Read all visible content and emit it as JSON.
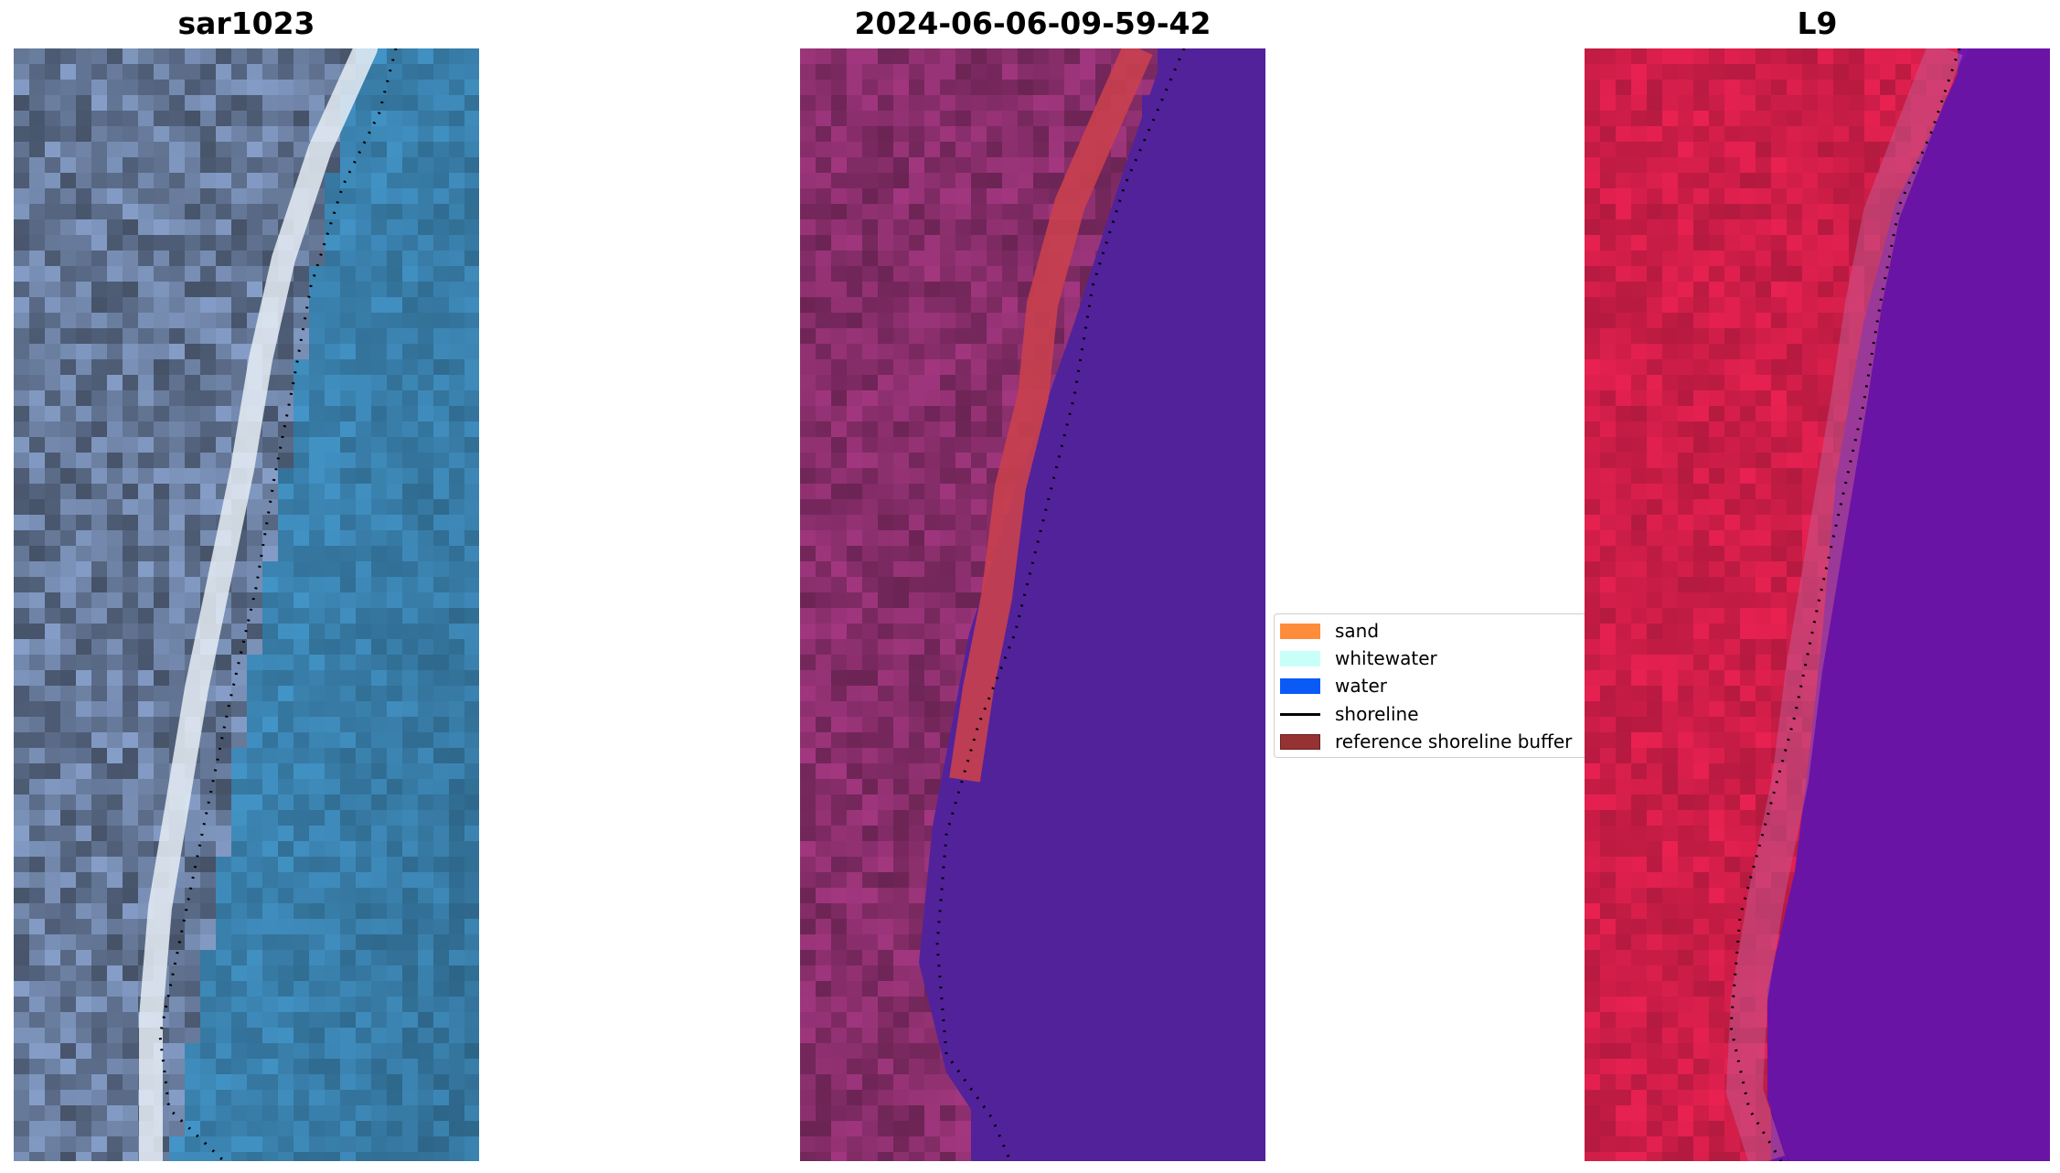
{
  "panels": [
    {
      "title": "sar1023",
      "style": "rgb"
    },
    {
      "title": "2024-06-06-09-59-42",
      "style": "classified"
    },
    {
      "title": "L9",
      "style": "ndwi"
    }
  ],
  "legend": {
    "items": [
      {
        "label": "sand",
        "color": "#ff8c3a",
        "kind": "patch"
      },
      {
        "label": "whitewater",
        "color": "#c8fff8",
        "kind": "patch"
      },
      {
        "label": "water",
        "color": "#0a5af5",
        "kind": "patch"
      },
      {
        "label": "shoreline",
        "color": "#000000",
        "kind": "line"
      },
      {
        "label": "reference shoreline buffer",
        "color": "#963232",
        "kind": "patch"
      }
    ]
  },
  "colors": {
    "rgb_land": "#5c6d8a",
    "rgb_sand": "#e6edf5",
    "rgb_water": "#3d88b7",
    "class_land": "#7d2a62",
    "class_buffer": "#c9404e",
    "class_water": "#52229b",
    "ndwi_land": "#d31e4a",
    "ndwi_water": "#6a14a6"
  }
}
